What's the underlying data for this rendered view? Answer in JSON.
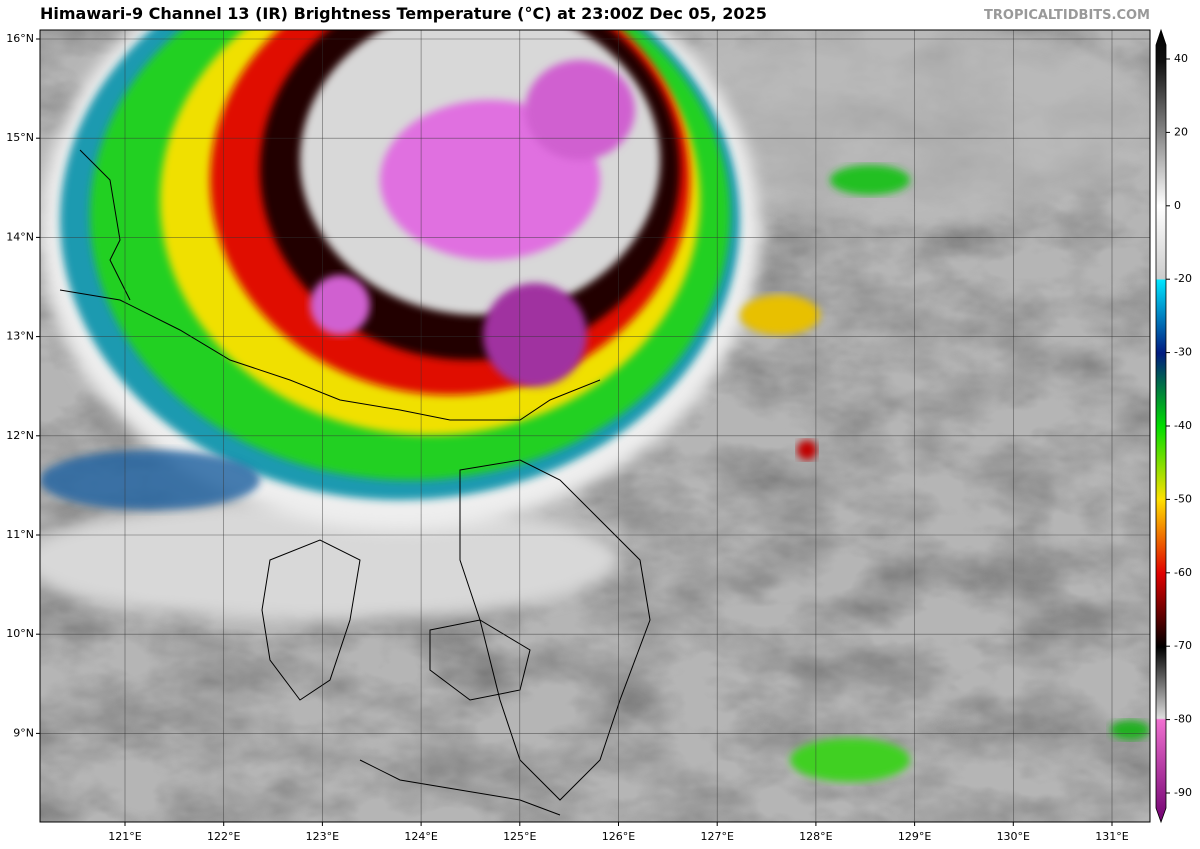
{
  "title": "Himawari-9 Channel 13 (IR) Brightness Temperature (°C) at 23:00Z Dec 05, 2025",
  "credit": "TROPICALTIDBITS.COM",
  "map": {
    "lat_labels": [
      {
        "value": 16,
        "label": "16°N"
      },
      {
        "value": 15,
        "label": "15°N"
      },
      {
        "value": 14,
        "label": "14°N"
      },
      {
        "value": 13,
        "label": "13°N"
      },
      {
        "value": 12,
        "label": "12°N"
      },
      {
        "value": 11,
        "label": "11°N"
      },
      {
        "value": 10,
        "label": "10°N"
      },
      {
        "value": 9,
        "label": "9°N"
      }
    ],
    "lon_labels": [
      {
        "value": 121,
        "label": "121°E"
      },
      {
        "value": 122,
        "label": "122°E"
      },
      {
        "value": 123,
        "label": "123°E"
      },
      {
        "value": 124,
        "label": "124°E"
      },
      {
        "value": 125,
        "label": "125°E"
      },
      {
        "value": 126,
        "label": "126°E"
      },
      {
        "value": 127,
        "label": "127°E"
      },
      {
        "value": 128,
        "label": "128°E"
      },
      {
        "value": 129,
        "label": "129°E"
      },
      {
        "value": 130,
        "label": "130°E"
      },
      {
        "value": 131,
        "label": "131°E"
      }
    ]
  },
  "colorbar": {
    "ticks": [
      40,
      20,
      0,
      -20,
      -30,
      -40,
      -50,
      -60,
      -70,
      -80,
      -90
    ]
  }
}
